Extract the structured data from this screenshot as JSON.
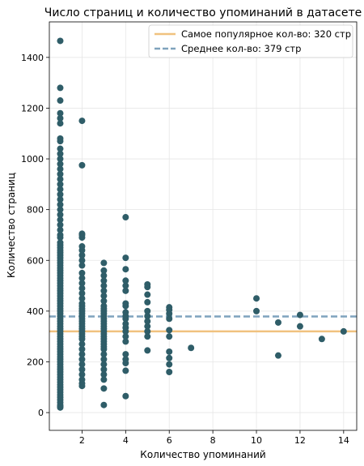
{
  "chart_data": {
    "type": "scatter",
    "title": "Число страниц и количество упоминаний в датасете",
    "xlabel": "Количество упоминаний",
    "ylabel": "Количество страниц",
    "xlim": [
      0.5,
      14.6
    ],
    "ylim": [
      -70,
      1540
    ],
    "xticks": [
      2,
      4,
      6,
      8,
      10,
      12,
      14
    ],
    "yticks": [
      0,
      200,
      400,
      600,
      800,
      1000,
      1200,
      1400
    ],
    "grid": true,
    "legend_position": "top-right",
    "point_color": "#2f5d68",
    "reference_lines": [
      {
        "name": "Самое популярное кол-во: 320 стр",
        "y": 320,
        "style": "solid",
        "color": "#f0c27f"
      },
      {
        "name": "Среднее кол-во: 379 стр",
        "y": 379,
        "style": "dashed",
        "color": "#7fa3bd"
      }
    ],
    "series": [
      {
        "x": 1,
        "y": [
          20,
          25,
          30,
          40,
          50,
          60,
          70,
          80,
          90,
          100,
          110,
          120,
          130,
          140,
          150,
          160,
          170,
          180,
          190,
          200,
          210,
          220,
          230,
          240,
          250,
          260,
          270,
          280,
          290,
          300,
          310,
          320,
          330,
          340,
          350,
          360,
          370,
          380,
          390,
          400,
          410,
          420,
          430,
          440,
          450,
          460,
          470,
          480,
          490,
          500,
          510,
          520,
          530,
          540,
          550,
          560,
          570,
          580,
          590,
          600,
          610,
          620,
          630,
          640,
          650,
          660,
          670,
          690,
          700,
          720,
          740,
          760,
          780,
          800,
          820,
          840,
          860,
          880,
          900,
          920,
          940,
          960,
          980,
          1000,
          1020,
          1040,
          1070,
          1080,
          1140,
          1160,
          1180,
          1230,
          1280,
          1465
        ]
      },
      {
        "x": 2,
        "y": [
          105,
          115,
          130,
          150,
          170,
          190,
          210,
          230,
          250,
          270,
          290,
          300,
          310,
          320,
          330,
          340,
          350,
          360,
          370,
          380,
          390,
          400,
          410,
          420,
          430,
          450,
          470,
          490,
          510,
          530,
          550,
          580,
          600,
          620,
          640,
          655,
          690,
          700,
          705,
          975,
          1150
        ]
      },
      {
        "x": 3,
        "y": [
          30,
          95,
          130,
          150,
          170,
          190,
          210,
          230,
          250,
          260,
          270,
          280,
          290,
          300,
          310,
          320,
          330,
          340,
          350,
          360,
          370,
          380,
          390,
          400,
          410,
          420,
          440,
          460,
          480,
          500,
          520,
          540,
          560,
          590
        ]
      },
      {
        "x": 4,
        "y": [
          65,
          165,
          195,
          210,
          230,
          280,
          300,
          320,
          335,
          350,
          370,
          380,
          395,
          420,
          430,
          480,
          500,
          520,
          565,
          610,
          770
        ]
      },
      {
        "x": 5,
        "y": [
          245,
          300,
          320,
          340,
          360,
          380,
          400,
          435,
          465,
          495,
          505
        ]
      },
      {
        "x": 6,
        "y": [
          160,
          190,
          215,
          240,
          300,
          325,
          370,
          390,
          405,
          415
        ]
      },
      {
        "x": 7,
        "y": [
          255
        ]
      },
      {
        "x": 10,
        "y": [
          400,
          450
        ]
      },
      {
        "x": 11,
        "y": [
          225,
          355
        ]
      },
      {
        "x": 12,
        "y": [
          340,
          385
        ]
      },
      {
        "x": 13,
        "y": [
          290
        ]
      },
      {
        "x": 14,
        "y": [
          320
        ]
      }
    ]
  }
}
